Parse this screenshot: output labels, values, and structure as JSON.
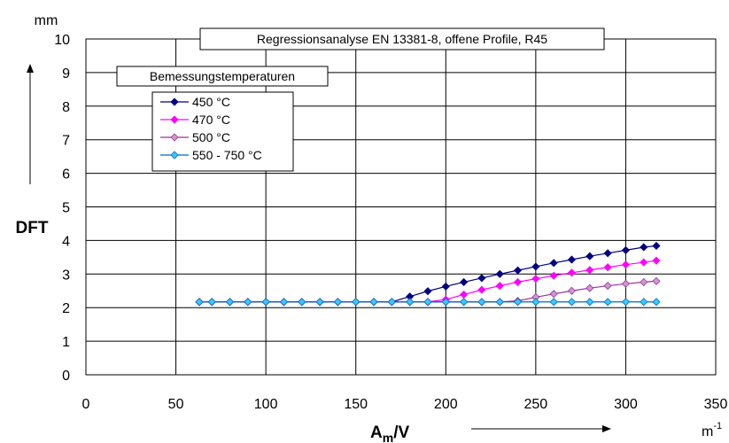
{
  "chart_data": {
    "type": "line",
    "title": "Regressionsanalyse EN 13381-8, offene Profile, R45",
    "xlabel_main": "A",
    "xlabel_sub": "m",
    "xlabel_tail": "/V",
    "ylabel": "DFT",
    "y_unit": "mm",
    "x_unit": "m",
    "x_unit_exp": "-1",
    "xlim": [
      0,
      350
    ],
    "ylim": [
      0,
      10
    ],
    "xticks": [
      0,
      50,
      100,
      150,
      200,
      250,
      300,
      350
    ],
    "yticks": [
      0,
      1,
      2,
      3,
      4,
      5,
      6,
      7,
      8,
      9,
      10
    ],
    "grid": true,
    "legend_title": "Bemessungstemperaturen",
    "legend_position": "top-left",
    "x": [
      63,
      70,
      80,
      90,
      100,
      110,
      120,
      130,
      140,
      150,
      160,
      170,
      180,
      190,
      200,
      210,
      220,
      230,
      240,
      250,
      260,
      270,
      280,
      290,
      300,
      310,
      317
    ],
    "series": [
      {
        "name": "450 °C",
        "color": "#000080",
        "marker_fill": "#000080",
        "values": [
          2.17,
          2.17,
          2.17,
          2.17,
          2.17,
          2.17,
          2.17,
          2.17,
          2.17,
          2.17,
          2.17,
          2.17,
          2.33,
          2.49,
          2.63,
          2.76,
          2.88,
          3.0,
          3.11,
          3.22,
          3.33,
          3.43,
          3.53,
          3.62,
          3.71,
          3.8,
          3.84
        ]
      },
      {
        "name": "470 °C",
        "color": "#ff00ff",
        "marker_fill": "#ff00ff",
        "values": [
          2.17,
          2.17,
          2.17,
          2.17,
          2.17,
          2.17,
          2.17,
          2.17,
          2.17,
          2.17,
          2.17,
          2.17,
          2.17,
          2.17,
          2.24,
          2.39,
          2.53,
          2.65,
          2.76,
          2.86,
          2.95,
          3.04,
          3.12,
          3.2,
          3.28,
          3.35,
          3.4
        ]
      },
      {
        "name": "500 °C",
        "color": "#993399",
        "marker_fill": "#cc99cc",
        "values": [
          2.17,
          2.17,
          2.17,
          2.17,
          2.17,
          2.17,
          2.17,
          2.17,
          2.17,
          2.17,
          2.17,
          2.17,
          2.17,
          2.17,
          2.17,
          2.17,
          2.17,
          2.17,
          2.2,
          2.31,
          2.41,
          2.5,
          2.58,
          2.65,
          2.71,
          2.76,
          2.79
        ]
      },
      {
        "name": "550 - 750 °C",
        "color": "#0066cc",
        "marker_fill": "#33ccff",
        "values": [
          2.17,
          2.17,
          2.17,
          2.17,
          2.17,
          2.17,
          2.17,
          2.17,
          2.17,
          2.17,
          2.17,
          2.17,
          2.17,
          2.17,
          2.17,
          2.17,
          2.17,
          2.17,
          2.17,
          2.17,
          2.17,
          2.17,
          2.17,
          2.17,
          2.17,
          2.17,
          2.17
        ]
      }
    ]
  }
}
